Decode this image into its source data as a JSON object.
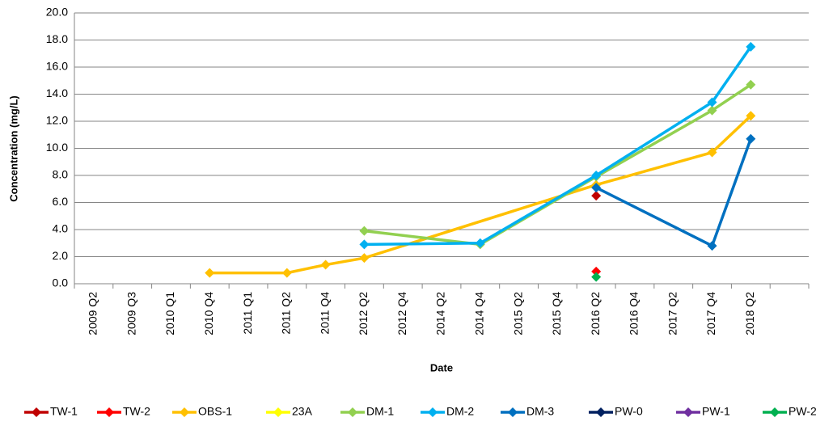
{
  "chart_data": {
    "type": "line",
    "xlabel": "Date",
    "ylabel": "Concentration (mg/L)",
    "categories": [
      "2009 Q2",
      "2009 Q3",
      "2010 Q1",
      "2010 Q4",
      "2011 Q1",
      "2011 Q2",
      "2011 Q4",
      "2012 Q2",
      "2012 Q4",
      "2014 Q2",
      "2014 Q4",
      "2015 Q2",
      "2015 Q4",
      "2016 Q2",
      "2016 Q4",
      "2017 Q2",
      "2017 Q4",
      "2018 Q2",
      null
    ],
    "ylim": [
      0,
      20
    ],
    "yticks": [
      {
        "value": 0,
        "label": "0.0"
      },
      {
        "value": 2,
        "label": "2.0"
      },
      {
        "value": 4,
        "label": "4.0"
      },
      {
        "value": 6,
        "label": "6.0"
      },
      {
        "value": 8,
        "label": "8.0"
      },
      {
        "value": 10,
        "label": "10.0"
      },
      {
        "value": 12,
        "label": "12.0"
      },
      {
        "value": 14,
        "label": "14.0"
      },
      {
        "value": 16,
        "label": "16.0"
      },
      {
        "value": 18,
        "label": "18.0"
      },
      {
        "value": 20,
        "label": "20.0"
      }
    ],
    "grid": true,
    "connect_gaps": true,
    "marker": "diamond",
    "legend": "bottom",
    "series": [
      {
        "name": "TW-1",
        "color": "#c00000",
        "values": [
          null,
          null,
          null,
          null,
          null,
          null,
          null,
          null,
          null,
          null,
          null,
          null,
          null,
          6.5,
          null,
          null,
          null,
          null,
          null
        ]
      },
      {
        "name": "TW-2",
        "color": "#ff0000",
        "values": [
          null,
          null,
          null,
          null,
          null,
          null,
          null,
          null,
          null,
          null,
          null,
          null,
          null,
          0.9,
          null,
          null,
          null,
          null,
          null
        ]
      },
      {
        "name": "OBS-1",
        "color": "#ffc000",
        "values": [
          null,
          null,
          null,
          0.8,
          null,
          0.8,
          1.4,
          1.9,
          null,
          null,
          null,
          null,
          null,
          7.3,
          null,
          null,
          9.7,
          12.4,
          null
        ]
      },
      {
        "name": "23A",
        "color": "#ffff00",
        "values": [
          null,
          null,
          null,
          null,
          null,
          null,
          null,
          null,
          null,
          null,
          null,
          null,
          null,
          null,
          null,
          null,
          null,
          null,
          null
        ]
      },
      {
        "name": "DM-1",
        "color": "#92d050",
        "values": [
          null,
          null,
          null,
          null,
          null,
          null,
          null,
          3.9,
          null,
          null,
          2.9,
          null,
          null,
          7.9,
          null,
          null,
          12.8,
          14.7,
          null
        ]
      },
      {
        "name": "DM-2",
        "color": "#00b0f0",
        "values": [
          null,
          null,
          null,
          null,
          null,
          null,
          null,
          2.9,
          null,
          null,
          3.0,
          null,
          null,
          8.0,
          null,
          null,
          13.4,
          17.5,
          null
        ]
      },
      {
        "name": "DM-3",
        "color": "#0070c0",
        "values": [
          null,
          null,
          null,
          null,
          null,
          null,
          null,
          null,
          null,
          null,
          null,
          null,
          null,
          7.1,
          null,
          null,
          2.8,
          10.7,
          null
        ]
      },
      {
        "name": "PW-0",
        "color": "#002060",
        "values": [
          null,
          null,
          null,
          null,
          null,
          null,
          null,
          null,
          null,
          null,
          null,
          null,
          null,
          null,
          null,
          null,
          null,
          null,
          null
        ]
      },
      {
        "name": "PW-1",
        "color": "#7030a0",
        "values": [
          null,
          null,
          null,
          null,
          null,
          null,
          null,
          null,
          null,
          null,
          null,
          null,
          null,
          null,
          null,
          null,
          null,
          null,
          null
        ]
      },
      {
        "name": "PW-2",
        "color": "#00b050",
        "values": [
          null,
          null,
          null,
          null,
          null,
          null,
          null,
          null,
          null,
          null,
          null,
          null,
          null,
          0.5,
          null,
          null,
          null,
          null,
          null
        ]
      }
    ]
  }
}
